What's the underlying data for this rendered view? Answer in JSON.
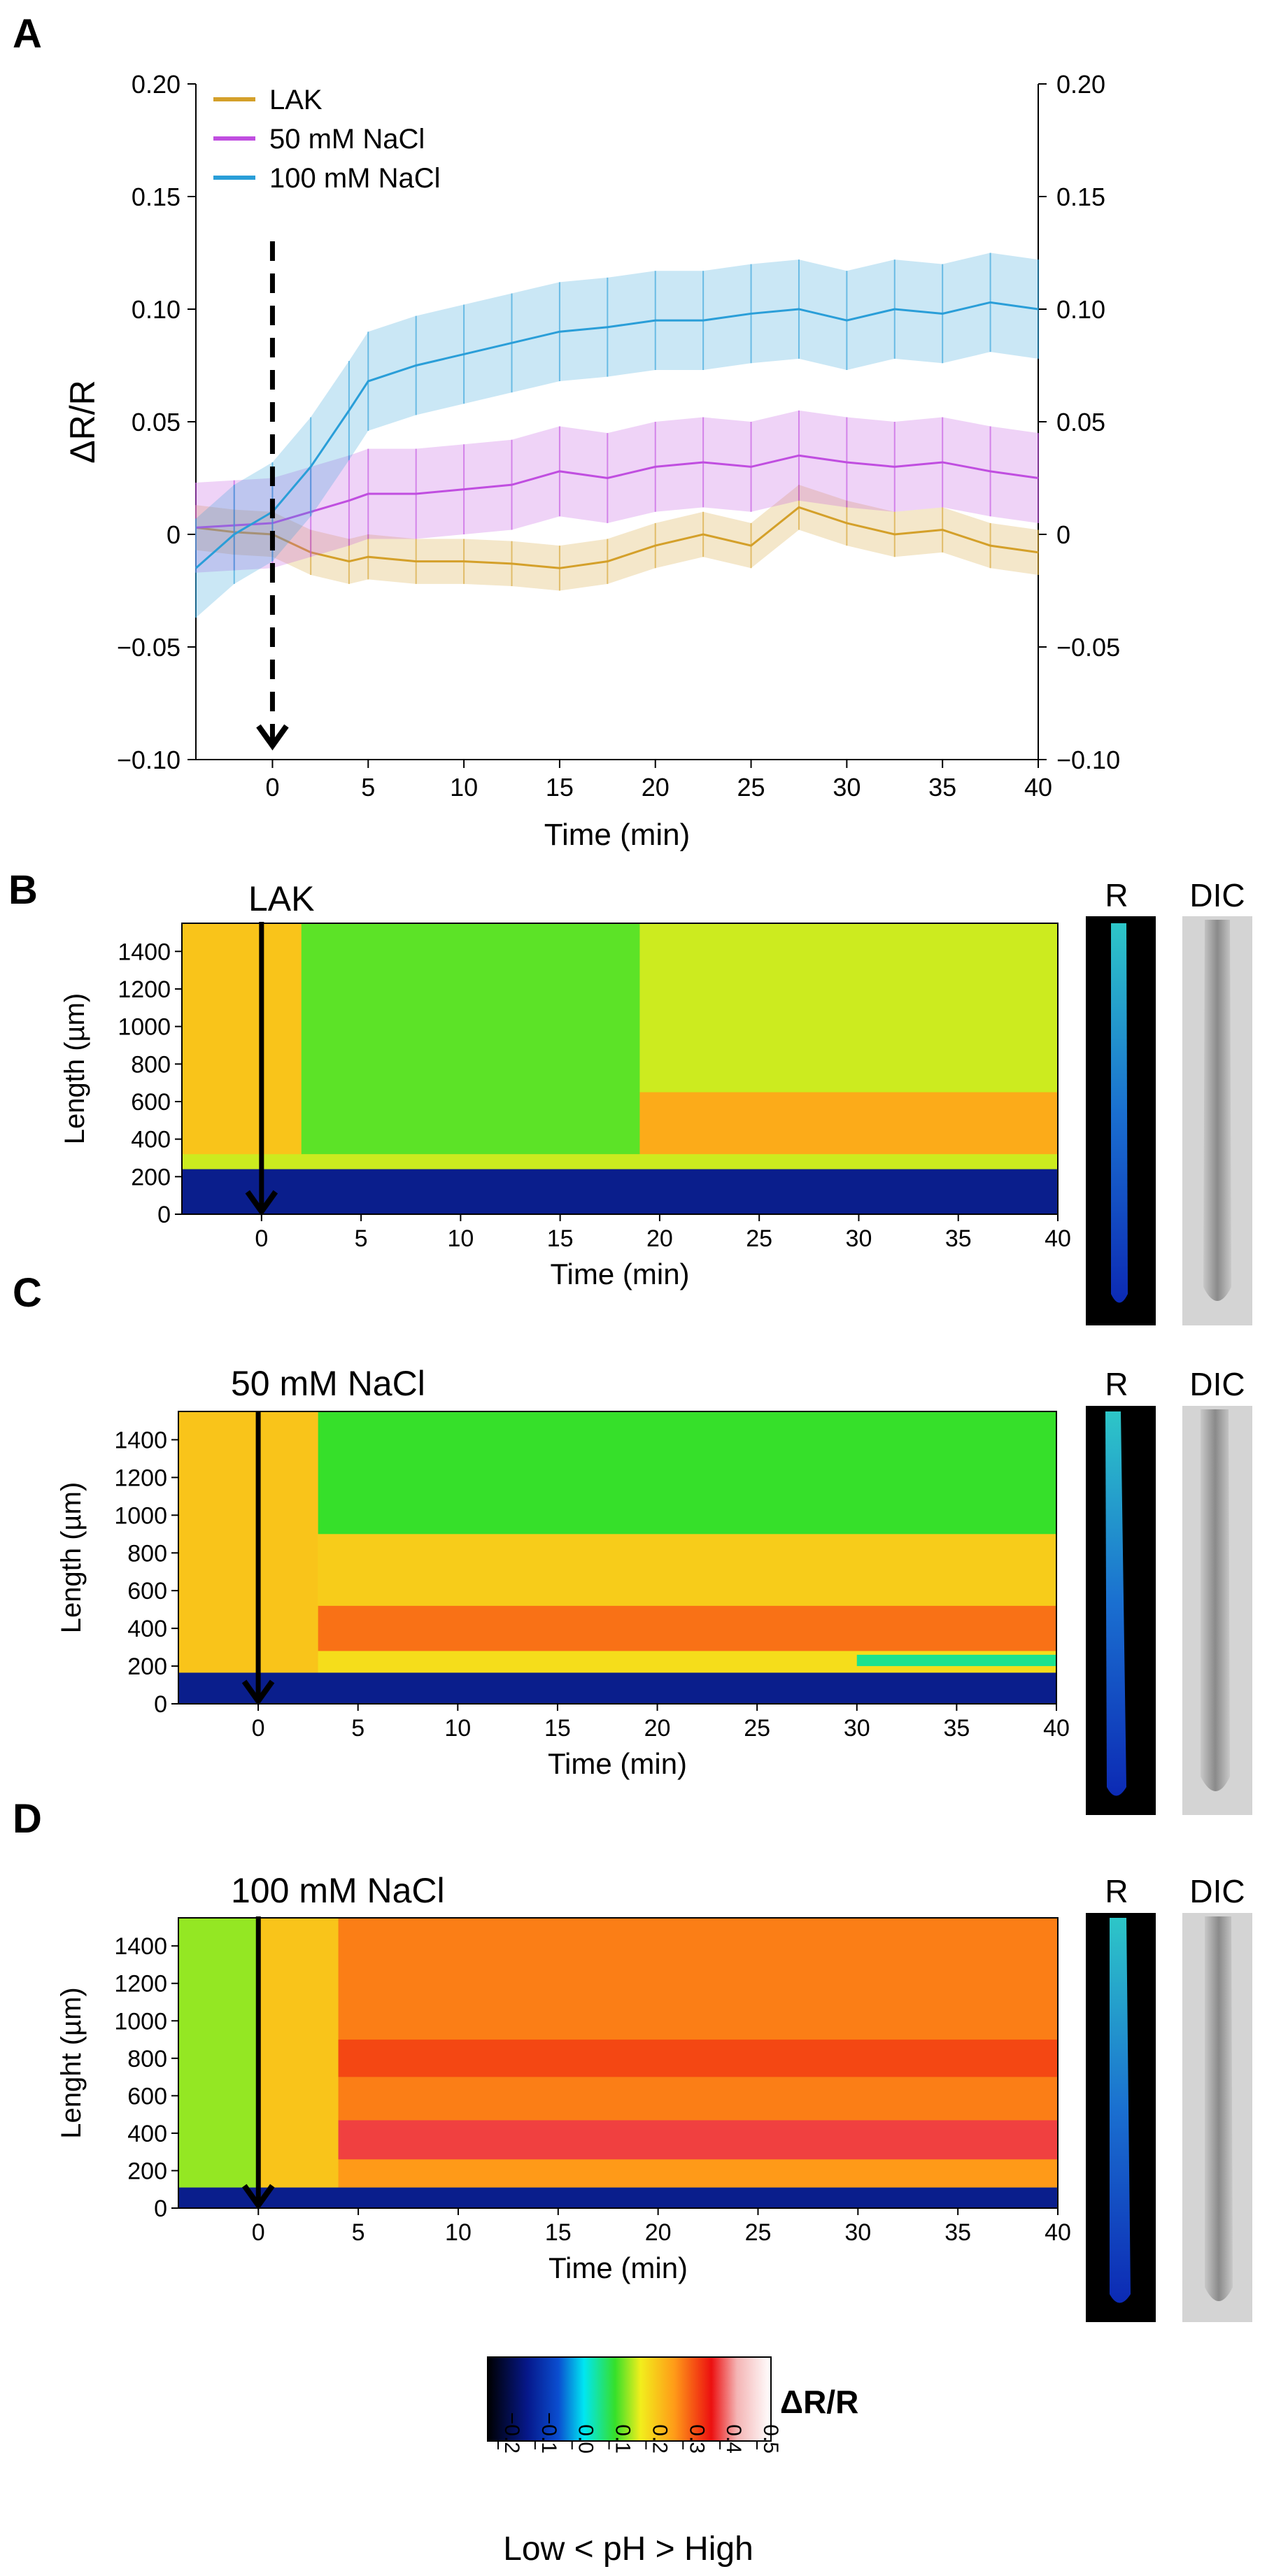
{
  "panels": {
    "a": {
      "letter": "A"
    },
    "b": {
      "letter": "B",
      "title": "LAK",
      "ylabel": "Length (µm)"
    },
    "c": {
      "letter": "C",
      "title": "50 mM NaCl",
      "ylabel": "Length (µm)"
    },
    "d": {
      "letter": "D",
      "title": "100 mM NaCl",
      "ylabel": "Lenght (µm)"
    }
  },
  "side_labels": {
    "r": "R",
    "dic": "DIC"
  },
  "colorbar": {
    "label": "ΔR/R",
    "ticks": [
      "−0.2",
      "−0.1",
      "0.0",
      "0.1",
      "0.2",
      "0.3",
      "0.4",
      "0.5"
    ],
    "caption": "Low < pH > High"
  },
  "colors": {
    "lak": "#d4a02a",
    "nacl50": "#c04ee0",
    "nacl100": "#2a9ed8",
    "heat_low": "#0a1e8c",
    "heat_high": "#e61e10",
    "arrow": "#000000"
  },
  "chart_data": [
    {
      "type": "line",
      "panel": "A",
      "xlabel": "Time (min)",
      "ylabel": "ΔR/R",
      "xlim": [
        -4,
        40
      ],
      "ylim": [
        -0.1,
        0.2
      ],
      "x_ticks": [
        0,
        5,
        10,
        15,
        20,
        25,
        30,
        35,
        40
      ],
      "y_ticks": [
        -0.1,
        -0.05,
        0,
        0.05,
        0.1,
        0.15,
        0.2
      ],
      "y_tick_labels": [
        "−0.10",
        "−0.05",
        "0",
        "0.05",
        "0.10",
        "0.15",
        "0.20"
      ],
      "right_axis_tick_labels": [
        "−0.10",
        "−0.05",
        "0",
        "0.05",
        "0.10",
        "0.15",
        "0.20"
      ],
      "legend": "top-left",
      "annotation": "dashed arrow at t = 0",
      "x": [
        -4,
        -2,
        0,
        2,
        4,
        5,
        7.5,
        10,
        12.5,
        15,
        17.5,
        20,
        22.5,
        25,
        27.5,
        30,
        32.5,
        35,
        37.5,
        40
      ],
      "series": [
        {
          "name": "LAK",
          "color": "#d4a02a",
          "error": 0.01,
          "values": [
            0.003,
            0.001,
            0.0,
            -0.008,
            -0.012,
            -0.01,
            -0.012,
            -0.012,
            -0.013,
            -0.015,
            -0.012,
            -0.005,
            0.0,
            -0.005,
            0.012,
            0.005,
            0.0,
            0.002,
            -0.005,
            -0.008
          ]
        },
        {
          "name": "50 mM NaCl",
          "color": "#c04ee0",
          "error": 0.02,
          "values": [
            0.003,
            0.004,
            0.005,
            0.01,
            0.015,
            0.018,
            0.018,
            0.02,
            0.022,
            0.028,
            0.025,
            0.03,
            0.032,
            0.03,
            0.035,
            0.032,
            0.03,
            0.032,
            0.028,
            0.025
          ]
        },
        {
          "name": "100 mM NaCl",
          "color": "#2a9ed8",
          "error": 0.022,
          "values": [
            -0.015,
            0.0,
            0.01,
            0.03,
            0.055,
            0.068,
            0.075,
            0.08,
            0.085,
            0.09,
            0.092,
            0.095,
            0.095,
            0.098,
            0.1,
            0.095,
            0.1,
            0.098,
            0.103,
            0.1
          ]
        }
      ]
    },
    {
      "type": "heatmap",
      "panel": "B",
      "title": "LAK",
      "xlabel": "Time (min)",
      "ylabel": "Length (µm)",
      "xlim": [
        -4,
        40
      ],
      "ylim": [
        0,
        1550
      ],
      "x_ticks": [
        0,
        5,
        10,
        15,
        20,
        25,
        30,
        35,
        40
      ],
      "y_ticks": [
        0,
        200,
        400,
        600,
        800,
        1000,
        1200,
        1400
      ],
      "annotation": "arrow at t = 0",
      "low_band_top_um": 240,
      "bands": [
        {
          "y_from": 240,
          "y_to": 320,
          "x_from": -4,
          "x_to": 40,
          "value": 0.18
        },
        {
          "y_from": 320,
          "y_to": 1550,
          "x_from": -4,
          "x_to": 2,
          "value": 0.25
        },
        {
          "y_from": 320,
          "y_to": 1550,
          "x_from": 2,
          "x_to": 19,
          "value": 0.12
        },
        {
          "y_from": 320,
          "y_to": 650,
          "x_from": 19,
          "x_to": 40,
          "value": 0.28
        },
        {
          "y_from": 650,
          "y_to": 1550,
          "x_from": 19,
          "x_to": 40,
          "value": 0.18
        }
      ]
    },
    {
      "type": "heatmap",
      "panel": "C",
      "title": "50 mM NaCl",
      "xlabel": "Time (min)",
      "ylabel": "Length (µm)",
      "xlim": [
        -4,
        40
      ],
      "ylim": [
        0,
        1550
      ],
      "x_ticks": [
        0,
        5,
        10,
        15,
        20,
        25,
        30,
        35,
        40
      ],
      "y_ticks": [
        0,
        200,
        400,
        600,
        800,
        1000,
        1200,
        1400
      ],
      "annotation": "arrow at t = 0",
      "low_band_top_um": 165,
      "bands": [
        {
          "y_from": 165,
          "y_to": 1550,
          "x_from": -4,
          "x_to": 3,
          "value": 0.25
        },
        {
          "y_from": 165,
          "y_to": 280,
          "x_from": 3,
          "x_to": 40,
          "value": 0.22
        },
        {
          "y_from": 280,
          "y_to": 520,
          "x_from": 3,
          "x_to": 40,
          "value": 0.33
        },
        {
          "y_from": 520,
          "y_to": 900,
          "x_from": 3,
          "x_to": 40,
          "value": 0.24
        },
        {
          "y_from": 900,
          "y_to": 1550,
          "x_from": 3,
          "x_to": 40,
          "value": 0.1
        },
        {
          "y_from": 200,
          "y_to": 260,
          "x_from": 30,
          "x_to": 40,
          "value": 0.05
        }
      ]
    },
    {
      "type": "heatmap",
      "panel": "D",
      "title": "100 mM NaCl",
      "xlabel": "Time (min)",
      "ylabel": "Lenght (µm)",
      "xlim": [
        -4,
        40
      ],
      "ylim": [
        0,
        1550
      ],
      "x_ticks": [
        0,
        5,
        10,
        15,
        20,
        25,
        30,
        35,
        40
      ],
      "y_ticks": [
        0,
        200,
        400,
        600,
        800,
        1000,
        1200,
        1400
      ],
      "annotation": "arrow at t = 0",
      "low_band_top_um": 110,
      "bands": [
        {
          "y_from": 110,
          "y_to": 1550,
          "x_from": -4,
          "x_to": 0,
          "value": 0.15
        },
        {
          "y_from": 110,
          "y_to": 1550,
          "x_from": 0,
          "x_to": 4,
          "value": 0.25
        },
        {
          "y_from": 110,
          "y_to": 260,
          "x_from": 4,
          "x_to": 40,
          "value": 0.3
        },
        {
          "y_from": 260,
          "y_to": 470,
          "x_from": 4,
          "x_to": 40,
          "value": 0.42
        },
        {
          "y_from": 470,
          "y_to": 700,
          "x_from": 4,
          "x_to": 40,
          "value": 0.32
        },
        {
          "y_from": 700,
          "y_to": 900,
          "x_from": 4,
          "x_to": 40,
          "value": 0.36
        },
        {
          "y_from": 900,
          "y_to": 1550,
          "x_from": 4,
          "x_to": 40,
          "value": 0.32
        }
      ]
    }
  ]
}
